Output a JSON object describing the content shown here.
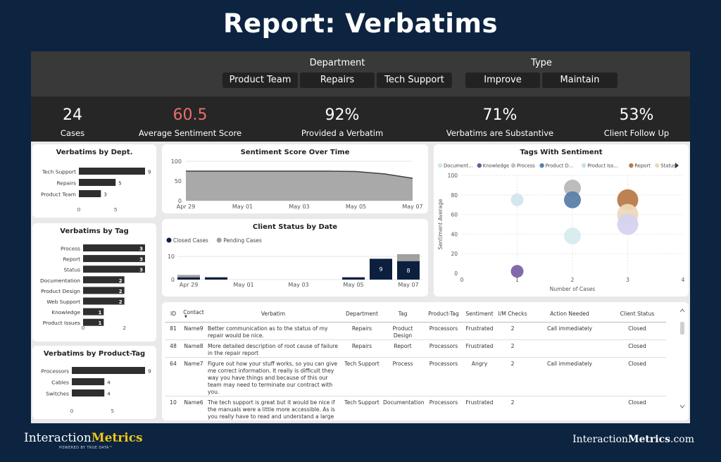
{
  "page_title": "Report: Verbatims",
  "filters": {
    "department_label": "Department",
    "department_options": [
      "Product Team",
      "Repairs",
      "Tech Support"
    ],
    "type_label": "Type",
    "type_options": [
      "Improve",
      "Maintain"
    ]
  },
  "kpis": [
    {
      "value": "24",
      "label": "Cases",
      "color": "#ffffff"
    },
    {
      "value": "60.5",
      "label": "Average Sentiment Score",
      "color": "#e9706b"
    },
    {
      "value": "92%",
      "label": "Provided a Verbatim",
      "color": "#ffffff"
    },
    {
      "value": "71%",
      "label": "Verbatims are Substantive",
      "color": "#ffffff"
    },
    {
      "value": "53%",
      "label": "Client Follow Up",
      "color": "#ffffff"
    }
  ],
  "chart_data": [
    {
      "id": "by_dept",
      "type": "bar",
      "orientation": "horizontal",
      "title": "Verbatims by Dept.",
      "categories": [
        "Tech Support",
        "Repairs",
        "Product Team"
      ],
      "values": [
        9,
        5,
        3
      ],
      "xticks": [
        "0",
        "5"
      ],
      "xlim": [
        0,
        9
      ]
    },
    {
      "id": "by_tag",
      "type": "bar",
      "orientation": "horizontal",
      "title": "Verbatims by Tag",
      "categories": [
        "Process",
        "Report",
        "Status",
        "Documentation",
        "Product Design",
        "Web Support",
        "Knowledge",
        "Product Issues"
      ],
      "values": [
        3,
        3,
        3,
        2,
        2,
        2,
        1,
        1
      ],
      "xticks": [
        "0",
        "2"
      ],
      "xlim": [
        0,
        3
      ]
    },
    {
      "id": "by_product_tag",
      "type": "bar",
      "orientation": "horizontal",
      "title": "Verbatims by Product-Tag",
      "categories": [
        "Processors",
        "Cables",
        "Switches"
      ],
      "values": [
        9,
        4,
        4
      ],
      "xticks": [
        "0",
        "5"
      ],
      "xlim": [
        0,
        9
      ]
    },
    {
      "id": "sentiment_over_time",
      "type": "area",
      "title": "Sentiment Score Over Time",
      "x": [
        "Apr 29",
        "Apr 30",
        "May 01",
        "May 02",
        "May 03",
        "May 04",
        "May 05",
        "May 06",
        "May 07"
      ],
      "xticks": [
        "Apr 29",
        "May 01",
        "May 03",
        "May 05",
        "May 07"
      ],
      "values": [
        75,
        75,
        75,
        75,
        75,
        75,
        74,
        68,
        57
      ],
      "yticks": [
        "100",
        "50",
        "0"
      ],
      "ylim": [
        0,
        100
      ]
    },
    {
      "id": "client_status",
      "type": "bar",
      "stacked": true,
      "title": "Client Status by Date",
      "xticks": [
        "Apr 29",
        "May 01",
        "May 03",
        "May 05",
        "May 07"
      ],
      "yticks": [
        "10",
        "0"
      ],
      "ylim": [
        0,
        14
      ],
      "series": [
        {
          "name": "Closed Cases",
          "color": "#0c1f3f",
          "values": [
            1,
            1,
            0,
            0,
            0,
            0,
            1,
            9,
            8
          ],
          "labels": [
            "",
            "",
            "",
            "",
            "",
            "",
            "",
            "9",
            "8"
          ]
        },
        {
          "name": "Pending Cases",
          "color": "#a0a0a0",
          "values": [
            1,
            0,
            0,
            0,
            0,
            0,
            0,
            0,
            3
          ],
          "labels": [
            "",
            "",
            "",
            "",
            "",
            "",
            "",
            "",
            ""
          ]
        }
      ]
    },
    {
      "id": "tags_sentiment",
      "type": "scatter",
      "title": "Tags With Sentiment",
      "xlabel": "Number of Cases",
      "ylabel": "Sentiment Average",
      "xticks": [
        "0",
        "1",
        "2",
        "3",
        "4"
      ],
      "yticks": [
        "100",
        "80",
        "60",
        "40",
        "20",
        "0"
      ],
      "xlim": [
        0,
        4
      ],
      "ylim": [
        0,
        100
      ],
      "legend": [
        {
          "name": "Document...",
          "color": "#cfe6ec"
        },
        {
          "name": "Knowledge",
          "color": "#6c5a9c"
        },
        {
          "name": "Process",
          "color": "#b8c2cc"
        },
        {
          "name": "Product D...",
          "color": "#5a80a8"
        },
        {
          "name": "Product Iss...",
          "color": "#c6dfe8"
        },
        {
          "name": "Report",
          "color": "#b47c4e"
        },
        {
          "name": "Status",
          "color": "#ecd8b8"
        }
      ],
      "points": [
        {
          "tag": "Product Iss...",
          "x": 1,
          "y": 75,
          "r": 9,
          "color": "#d2e6ee"
        },
        {
          "tag": "Knowledge",
          "x": 1,
          "y": 2,
          "r": 9,
          "color": "#7a62a8"
        },
        {
          "tag": "Process",
          "x": 2,
          "y": 87,
          "r": 12,
          "color": "#b8b8b8"
        },
        {
          "tag": "Product D...",
          "x": 2,
          "y": 75,
          "r": 12,
          "color": "#5a80a8"
        },
        {
          "tag": "Document...",
          "x": 2,
          "y": 38,
          "r": 12,
          "color": "#d7ecef"
        },
        {
          "tag": "Report",
          "x": 3,
          "y": 75,
          "r": 15,
          "color": "#b87b4a"
        },
        {
          "tag": "Status",
          "x": 3,
          "y": 60,
          "r": 15,
          "color": "#edd8b8"
        },
        {
          "tag": "Process",
          "x": 3,
          "y": 50,
          "r": 15,
          "color": "#d5d3ee"
        }
      ]
    }
  ],
  "table": {
    "headers": [
      "ID",
      "Contact",
      "Verbatim",
      "Department",
      "Tag",
      "Product-Tag",
      "Sentiment",
      "I/M Checks",
      "Action Needed",
      "Client Status"
    ],
    "rows": [
      [
        "81",
        "Name9",
        "Better communication as to the status of my repair would be nice.",
        "Repairs",
        "Product Design",
        "Processors",
        "Frustrated",
        "2",
        "Call immediately",
        "Closed"
      ],
      [
        "48",
        "Name8",
        "More detailed description of root cause of failure in the repair report",
        "Repairs",
        "Report",
        "Processors",
        "Frustrated",
        "2",
        "",
        "Closed"
      ],
      [
        "64",
        "Name7",
        "Figure out how your stuff works, so you can give me correct information. It really is difficult they way you have things and because of this our team may need to terminate our contract with you.",
        "Tech Support",
        "Process",
        "Processors",
        "Angry",
        "2",
        "Call immediately",
        "Closed"
      ],
      [
        "10",
        "Name6",
        "The tech support is great but it would be nice if the manuals were a little more accessible. As is you really have to read and understand a large portion to get the inverter to perform as necessary.",
        "Tech Support",
        "Documentation",
        "Processors",
        "Frustrated",
        "2",
        "",
        "Closed"
      ]
    ]
  },
  "footer": {
    "logo_part1": "Interaction",
    "logo_part2": "Metrics",
    "logo_sub": "POWERED BY TRUE DATA™",
    "url_part1": "Interaction",
    "url_part2": "Metrics",
    "url_part3": ".com"
  }
}
